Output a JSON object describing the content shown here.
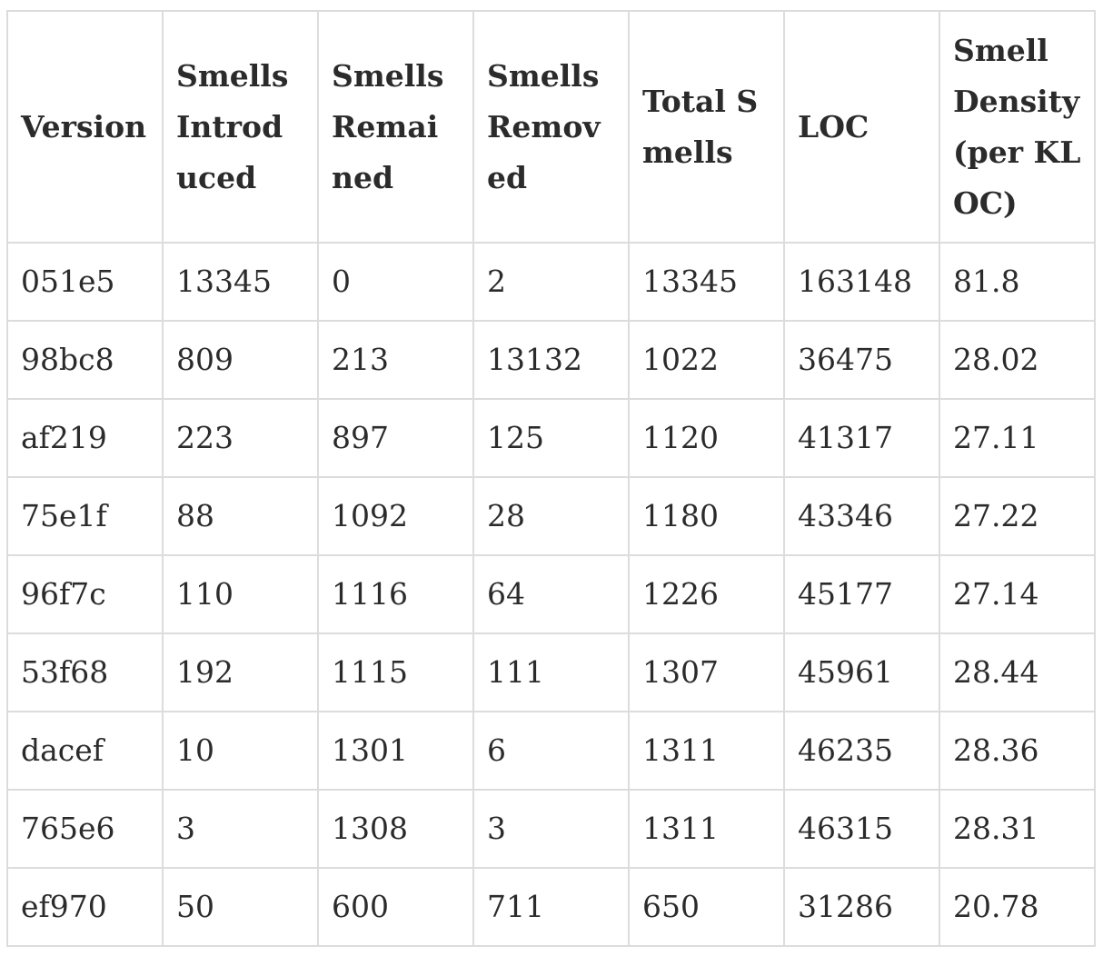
{
  "table": {
    "headers": [
      "Version",
      "Smells Introduced",
      "Smells Remained",
      "Smells Removed",
      "Total Smells",
      "LOC",
      "Smell Density (per KLOC)"
    ],
    "rows": [
      [
        "051e5",
        "13345",
        "0",
        "2",
        "13345",
        "163148",
        "81.8"
      ],
      [
        "98bc8",
        "809",
        "213",
        "13132",
        "1022",
        "36475",
        "28.02"
      ],
      [
        "af219",
        "223",
        "897",
        "125",
        "1120",
        "41317",
        "27.11"
      ],
      [
        "75e1f",
        "88",
        "1092",
        "28",
        "1180",
        "43346",
        "27.22"
      ],
      [
        "96f7c",
        "110",
        "1116",
        "64",
        "1226",
        "45177",
        "27.14"
      ],
      [
        "53f68",
        "192",
        "1115",
        "111",
        "1307",
        "45961",
        "28.44"
      ],
      [
        "dacef",
        "10",
        "1301",
        "6",
        "1311",
        "46235",
        "28.36"
      ],
      [
        "765e6",
        "3",
        "1308",
        "3",
        "1311",
        "46315",
        "28.31"
      ],
      [
        "ef970",
        "50",
        "600",
        "711",
        "650",
        "31286",
        "20.78"
      ]
    ]
  }
}
